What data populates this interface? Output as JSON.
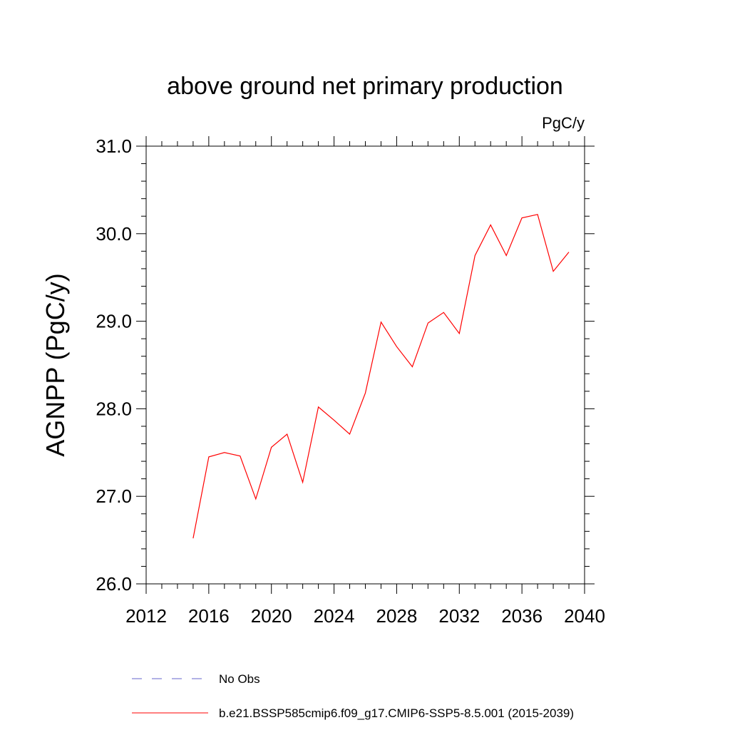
{
  "chart_data": {
    "type": "line",
    "title": "above ground net primary production",
    "units_label": "PgC/y",
    "ylabel": "AGNPP  (PgC/y)",
    "xlabel": "",
    "xlim": [
      2012,
      2040
    ],
    "ylim": [
      26.0,
      31.0
    ],
    "xticks": [
      2012,
      2016,
      2020,
      2024,
      2028,
      2032,
      2036,
      2040
    ],
    "yticks": [
      "26.0",
      "27.0",
      "28.0",
      "29.0",
      "30.0",
      "31.0"
    ],
    "series": [
      {
        "name": "b.e21.BSSP585cmip6.f09_g17.CMIP6-SSP5-8.5.001 (2015-2039)",
        "color": "#ff0000",
        "x": [
          2015,
          2016,
          2017,
          2018,
          2019,
          2020,
          2021,
          2022,
          2023,
          2024,
          2025,
          2026,
          2027,
          2028,
          2029,
          2030,
          2031,
          2032,
          2033,
          2034,
          2035,
          2036,
          2037,
          2038,
          2039
        ],
        "values": [
          26.52,
          27.45,
          27.5,
          27.46,
          26.97,
          27.56,
          27.71,
          27.16,
          28.02,
          27.87,
          27.71,
          28.18,
          28.99,
          28.71,
          28.48,
          28.98,
          29.1,
          28.86,
          29.75,
          30.1,
          29.75,
          30.18,
          30.22,
          29.57,
          29.79
        ]
      }
    ],
    "legend": [
      {
        "label": "No Obs",
        "style": "dashed",
        "color": "#6666cc"
      },
      {
        "label": "b.e21.BSSP585cmip6.f09_g17.CMIP6-SSP5-8.5.001 (2015-2039)",
        "style": "solid",
        "color": "#ff0000"
      }
    ],
    "grid": false,
    "legend_position": "bottom"
  }
}
